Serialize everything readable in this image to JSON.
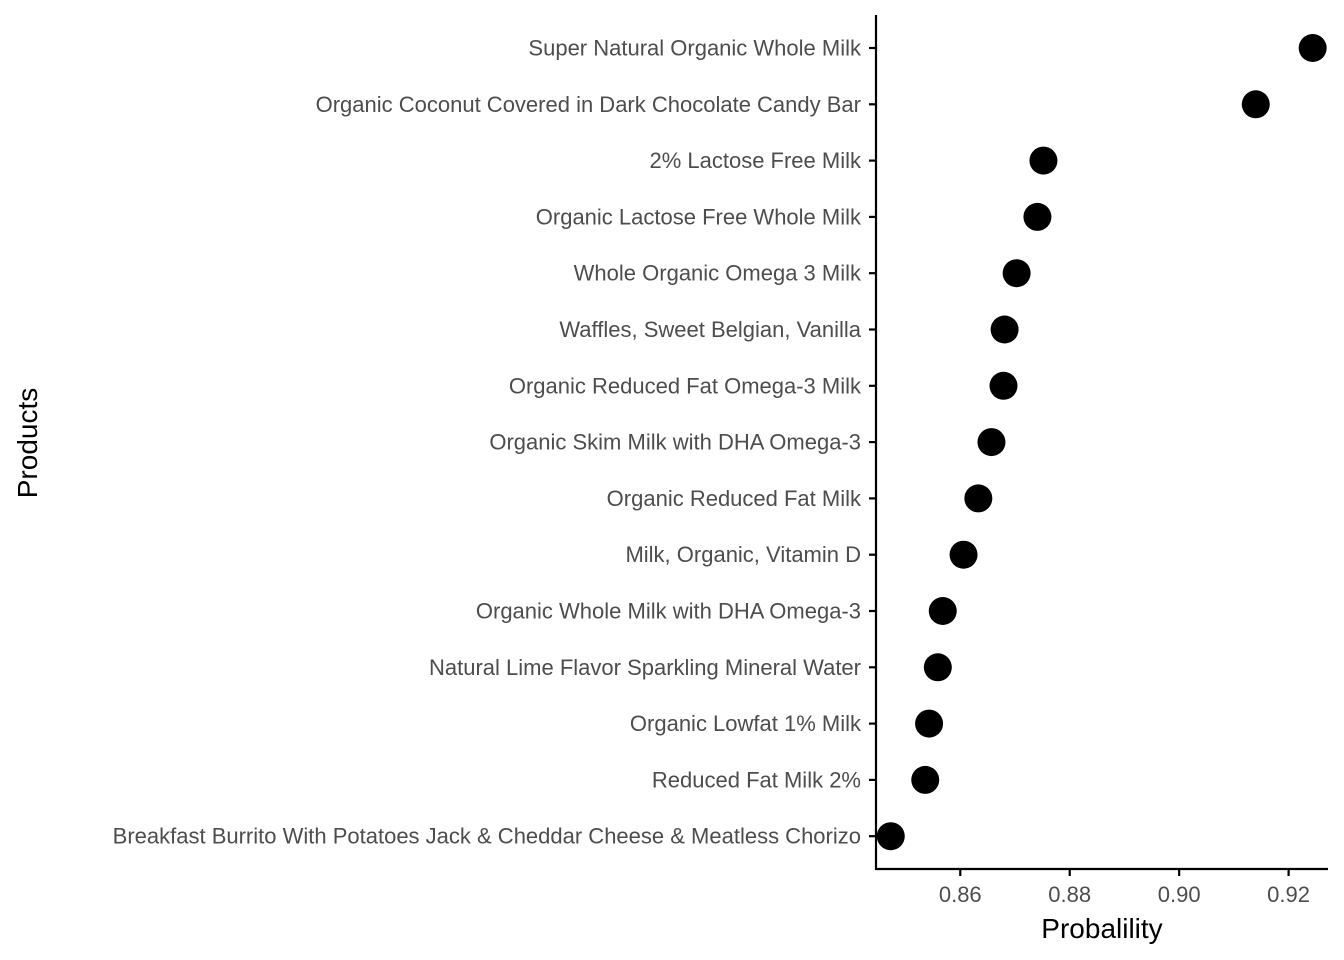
{
  "chart_data": {
    "type": "scatter",
    "xlabel": "Probalility",
    "ylabel": "Products",
    "xlim": [
      0.8446,
      0.9272
    ],
    "x_ticks": [
      0.86,
      0.88,
      0.9,
      0.92
    ],
    "x_tick_labels": [
      "0.86",
      "0.88",
      "0.90",
      "0.92"
    ],
    "grid": false,
    "point_color": "#000000",
    "axis_color": "#000000",
    "tick_label_color": "#4d4d4d",
    "categories": [
      "Super Natural Organic Whole Milk",
      "Organic Coconut Covered in Dark Chocolate Candy Bar",
      "2% Lactose Free Milk",
      "Organic Lactose Free Whole Milk",
      "Whole Organic Omega 3 Milk",
      "Waffles, Sweet Belgian, Vanilla",
      "Organic Reduced Fat Omega-3 Milk",
      "Organic Skim Milk with DHA Omega-3",
      "Organic Reduced Fat Milk",
      "Milk, Organic, Vitamin D",
      "Organic Whole Milk with DHA Omega-3",
      "Natural Lime Flavor Sparkling Mineral Water",
      "Organic Lowfat 1% Milk",
      "Reduced Fat Milk 2%",
      "Breakfast Burrito With Potatoes Jack & Cheddar Cheese & Meatless Chorizo"
    ],
    "values": [
      0.9244,
      0.914,
      0.8752,
      0.8741,
      0.8703,
      0.8681,
      0.8679,
      0.8657,
      0.8633,
      0.8606,
      0.8568,
      0.8559,
      0.8543,
      0.8536,
      0.8473
    ]
  }
}
